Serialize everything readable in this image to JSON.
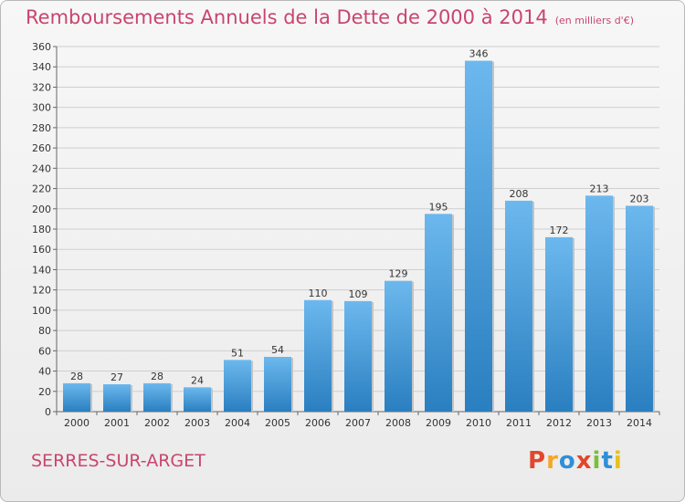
{
  "header": {
    "title": "Remboursements Annuels de la Dette de 2000 à 2014",
    "subtitle": "(en milliers d'€)"
  },
  "footer": {
    "commune": "SERRES-SUR-ARGET",
    "logo_text": "Proxiti"
  },
  "colors": {
    "title": "#c9456e",
    "bar_top": "#6cb8ee",
    "bar_bottom": "#2a7fc0",
    "logo": [
      "#e2472b",
      "#f5a623",
      "#2f8fd8",
      "#e2472b",
      "#7bbf3a",
      "#2f8fd8",
      "#e8c11a"
    ]
  },
  "chart_data": {
    "type": "bar",
    "title": "Remboursements Annuels de la Dette de 2000 à 2014",
    "subtitle": "(en milliers d'€)",
    "xlabel": "",
    "ylabel": "",
    "categories": [
      "2000",
      "2001",
      "2002",
      "2003",
      "2004",
      "2005",
      "2006",
      "2007",
      "2008",
      "2009",
      "2010",
      "2011",
      "2012",
      "2013",
      "2014"
    ],
    "values": [
      28,
      27,
      28,
      24,
      51,
      54,
      110,
      109,
      129,
      195,
      346,
      208,
      172,
      213,
      203
    ],
    "ylim": [
      0,
      360
    ],
    "yticks": [
      0,
      20,
      40,
      60,
      80,
      100,
      120,
      140,
      160,
      180,
      200,
      220,
      240,
      260,
      280,
      300,
      320,
      340,
      360
    ],
    "grid": true,
    "data_labels": true
  }
}
